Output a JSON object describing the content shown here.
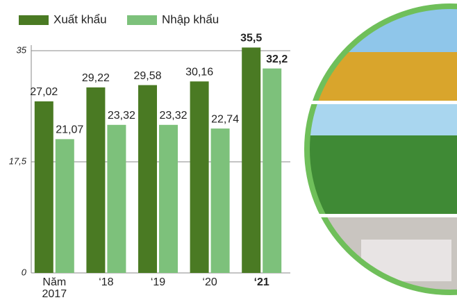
{
  "chart_data": {
    "type": "bar",
    "categories": [
      "Năm 2017",
      "‘18",
      "‘19",
      "‘20",
      "‘21"
    ],
    "series": [
      {
        "name": "Xuất khẩu",
        "color": "#4a7a23",
        "values": [
          27.02,
          29.22,
          29.58,
          30.16,
          35.5
        ],
        "value_labels": [
          "27,02",
          "29,22",
          "29,58",
          "30,16",
          "35,5"
        ]
      },
      {
        "name": "Nhập khẩu",
        "color": "#7dc17b",
        "values": [
          21.07,
          23.32,
          23.32,
          22.74,
          32.2
        ],
        "value_labels": [
          "21,07",
          "23,32",
          "23,32",
          "22,74",
          "32,2"
        ]
      }
    ],
    "ylim": [
      0,
      35
    ],
    "yticks": [
      0,
      {
        "value": 17.5,
        "label": "17,5"
      },
      35
    ],
    "grid": true
  }
}
